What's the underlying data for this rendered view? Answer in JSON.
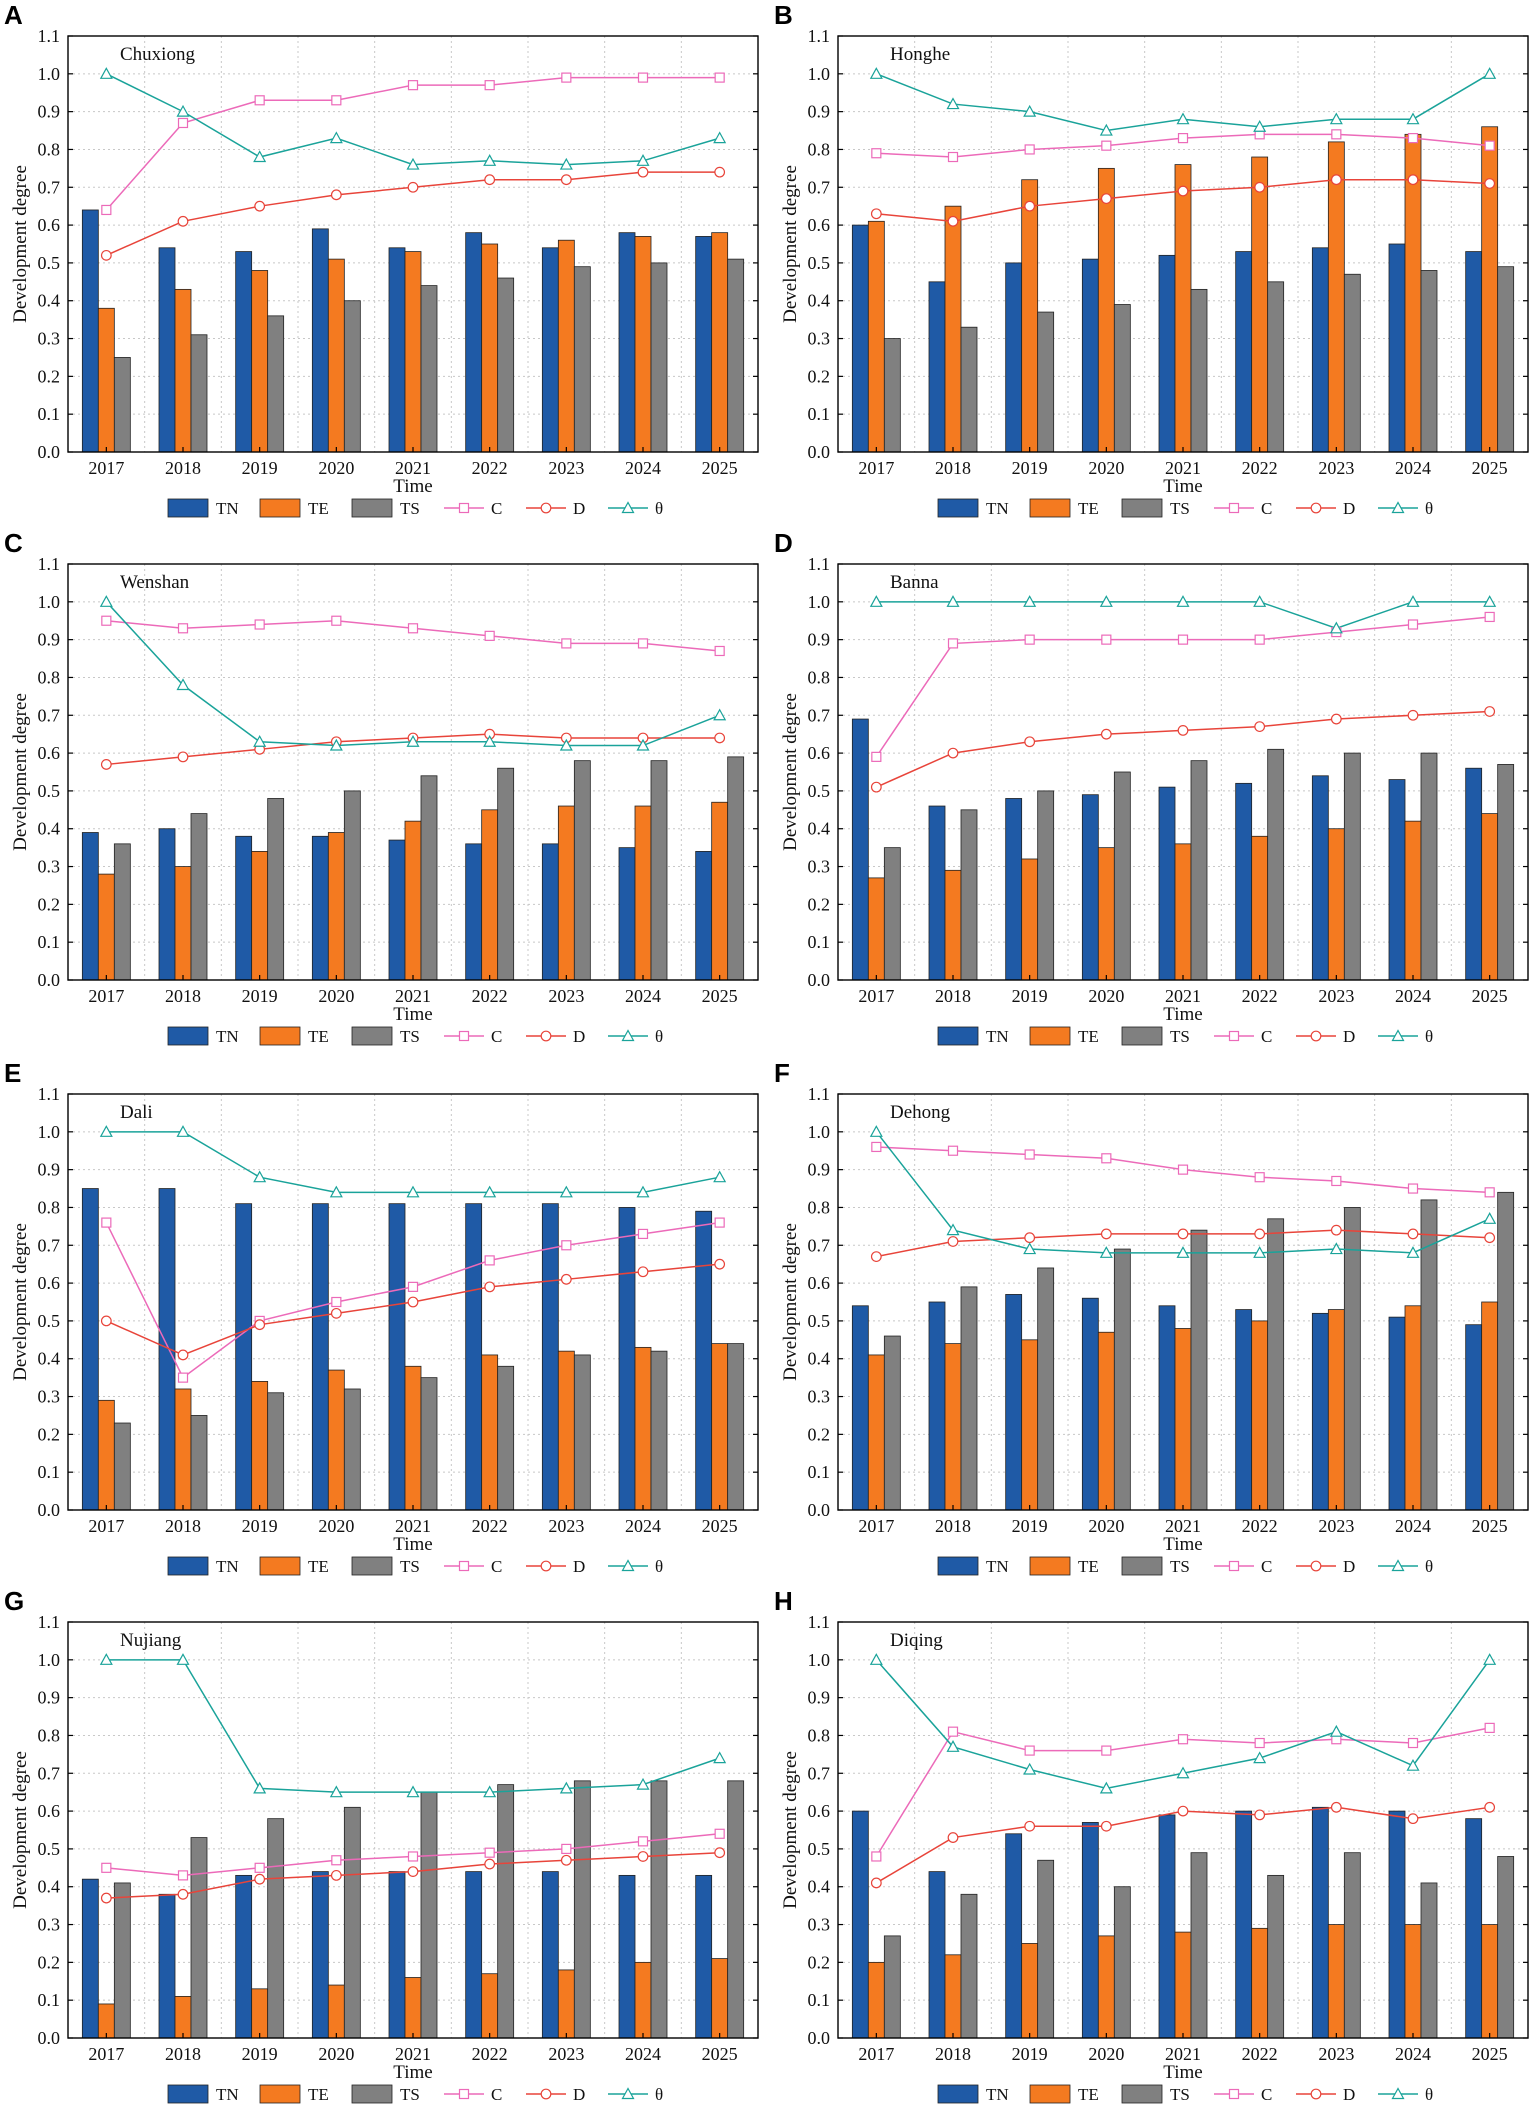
{
  "colors": {
    "TN": "#1f5aa6",
    "TE": "#f47a20",
    "TS": "#808080",
    "C": "#ec6ab9",
    "D": "#e8443a",
    "theta": "#1aa39a",
    "grid": "#c8c8c8",
    "axis": "#000000"
  },
  "chart_data": [
    {
      "panel": "A",
      "type": "bar+line",
      "title": "Chuxiong",
      "categories": [
        "2017",
        "2018",
        "2019",
        "2020",
        "2021",
        "2022",
        "2023",
        "2024",
        "2025"
      ],
      "xlabel": "Time",
      "ylabel": "Development degree",
      "ylim": [
        0,
        1.1
      ],
      "yticks": [
        "0.0",
        "0.1",
        "0.2",
        "0.3",
        "0.4",
        "0.5",
        "0.6",
        "0.7",
        "0.8",
        "0.9",
        "1.0",
        "1.1"
      ],
      "grid": true,
      "legend": "bottom",
      "legend_labels": {
        "TN": "TN",
        "TE": "TE",
        "TS": "TS",
        "C": "C",
        "D": "D",
        "theta": "θ"
      },
      "bars": {
        "TN": [
          0.64,
          0.54,
          0.53,
          0.59,
          0.54,
          0.58,
          0.54,
          0.58,
          0.57
        ],
        "TE": [
          0.38,
          0.43,
          0.48,
          0.51,
          0.53,
          0.55,
          0.56,
          0.57,
          0.58
        ],
        "TS": [
          0.25,
          0.31,
          0.36,
          0.4,
          0.44,
          0.46,
          0.49,
          0.5,
          0.51
        ]
      },
      "lines": {
        "C": [
          0.64,
          0.87,
          0.93,
          0.93,
          0.97,
          0.97,
          0.99,
          0.99,
          0.99
        ],
        "D": [
          0.52,
          0.61,
          0.65,
          0.68,
          0.7,
          0.72,
          0.72,
          0.74,
          0.74
        ],
        "theta": [
          1.0,
          0.9,
          0.78,
          0.83,
          0.76,
          0.77,
          0.76,
          0.77,
          0.83
        ]
      }
    },
    {
      "panel": "B",
      "type": "bar+line",
      "title": "Honghe",
      "categories": [
        "2017",
        "2018",
        "2019",
        "2020",
        "2021",
        "2022",
        "2023",
        "2024",
        "2025"
      ],
      "xlabel": "Time",
      "ylabel": "Development degree",
      "ylim": [
        0,
        1.1
      ],
      "yticks": [
        "0.0",
        "0.1",
        "0.2",
        "0.3",
        "0.4",
        "0.5",
        "0.6",
        "0.7",
        "0.8",
        "0.9",
        "1.0",
        "1.1"
      ],
      "grid": true,
      "legend": "bottom",
      "legend_labels": {
        "TN": "TN",
        "TE": "TE",
        "TS": "TS",
        "C": "C",
        "D": "D",
        "theta": "θ"
      },
      "bars": {
        "TN": [
          0.6,
          0.45,
          0.5,
          0.51,
          0.52,
          0.53,
          0.54,
          0.55,
          0.53
        ],
        "TE": [
          0.61,
          0.65,
          0.72,
          0.75,
          0.76,
          0.78,
          0.82,
          0.84,
          0.86
        ],
        "TS": [
          0.3,
          0.33,
          0.37,
          0.39,
          0.43,
          0.45,
          0.47,
          0.48,
          0.49
        ]
      },
      "lines": {
        "C": [
          0.79,
          0.78,
          0.8,
          0.81,
          0.83,
          0.84,
          0.84,
          0.83,
          0.81
        ],
        "D": [
          0.63,
          0.61,
          0.65,
          0.67,
          0.69,
          0.7,
          0.72,
          0.72,
          0.71
        ],
        "theta": [
          1.0,
          0.92,
          0.9,
          0.85,
          0.88,
          0.86,
          0.88,
          0.88,
          1.0
        ]
      }
    },
    {
      "panel": "C",
      "type": "bar+line",
      "title": "Wenshan",
      "categories": [
        "2017",
        "2018",
        "2019",
        "2020",
        "2021",
        "2022",
        "2023",
        "2024",
        "2025"
      ],
      "xlabel": "Time",
      "ylabel": "Development degree",
      "ylim": [
        0,
        1.1
      ],
      "yticks": [
        "0.0",
        "0.1",
        "0.2",
        "0.3",
        "0.4",
        "0.5",
        "0.6",
        "0.7",
        "0.8",
        "0.9",
        "1.0",
        "1.1"
      ],
      "grid": true,
      "legend": "bottom",
      "legend_labels": {
        "TN": "TN",
        "TE": "TE",
        "TS": "TS",
        "C": "C",
        "D": "D",
        "theta": "θ"
      },
      "bars": {
        "TN": [
          0.39,
          0.4,
          0.38,
          0.38,
          0.37,
          0.36,
          0.36,
          0.35,
          0.34
        ],
        "TE": [
          0.28,
          0.3,
          0.34,
          0.39,
          0.42,
          0.45,
          0.46,
          0.46,
          0.47
        ],
        "TS": [
          0.36,
          0.44,
          0.48,
          0.5,
          0.54,
          0.56,
          0.58,
          0.58,
          0.59
        ]
      },
      "lines": {
        "C": [
          0.95,
          0.93,
          0.94,
          0.95,
          0.93,
          0.91,
          0.89,
          0.89,
          0.87
        ],
        "D": [
          0.57,
          0.59,
          0.61,
          0.63,
          0.64,
          0.65,
          0.64,
          0.64,
          0.64
        ],
        "theta": [
          1.0,
          0.78,
          0.63,
          0.62,
          0.63,
          0.63,
          0.62,
          0.62,
          0.7
        ]
      }
    },
    {
      "panel": "D",
      "type": "bar+line",
      "title": "Banna",
      "categories": [
        "2017",
        "2018",
        "2019",
        "2020",
        "2021",
        "2022",
        "2023",
        "2024",
        "2025"
      ],
      "xlabel": "Time",
      "ylabel": "Development degree",
      "ylim": [
        0,
        1.1
      ],
      "yticks": [
        "0.0",
        "0.1",
        "0.2",
        "0.3",
        "0.4",
        "0.5",
        "0.6",
        "0.7",
        "0.8",
        "0.9",
        "1.0",
        "1.1"
      ],
      "grid": true,
      "legend": "bottom",
      "legend_labels": {
        "TN": "TN",
        "TE": "TE",
        "TS": "TS",
        "C": "C",
        "D": "D",
        "theta": "θ"
      },
      "bars": {
        "TN": [
          0.69,
          0.46,
          0.48,
          0.49,
          0.51,
          0.52,
          0.54,
          0.53,
          0.56
        ],
        "TE": [
          0.27,
          0.29,
          0.32,
          0.35,
          0.36,
          0.38,
          0.4,
          0.42,
          0.44
        ],
        "TS": [
          0.35,
          0.45,
          0.5,
          0.55,
          0.58,
          0.61,
          0.6,
          0.6,
          0.57
        ]
      },
      "lines": {
        "C": [
          0.59,
          0.89,
          0.9,
          0.9,
          0.9,
          0.9,
          0.92,
          0.94,
          0.96
        ],
        "D": [
          0.51,
          0.6,
          0.63,
          0.65,
          0.66,
          0.67,
          0.69,
          0.7,
          0.71
        ],
        "theta": [
          1.0,
          1.0,
          1.0,
          1.0,
          1.0,
          1.0,
          0.93,
          1.0,
          1.0
        ]
      }
    },
    {
      "panel": "E",
      "type": "bar+line",
      "title": "Dali",
      "categories": [
        "2017",
        "2018",
        "2019",
        "2020",
        "2021",
        "2022",
        "2023",
        "2024",
        "2025"
      ],
      "xlabel": "Time",
      "ylabel": "Development degree",
      "ylim": [
        0,
        1.1
      ],
      "yticks": [
        "0.0",
        "0.1",
        "0.2",
        "0.3",
        "0.4",
        "0.5",
        "0.6",
        "0.7",
        "0.8",
        "0.9",
        "1.0",
        "1.1"
      ],
      "grid": true,
      "legend": "bottom",
      "legend_labels": {
        "TN": "TN",
        "TE": "TE",
        "TS": "TS",
        "C": "C",
        "D": "D",
        "theta": "θ"
      },
      "bars": {
        "TN": [
          0.85,
          0.85,
          0.81,
          0.81,
          0.81,
          0.81,
          0.81,
          0.8,
          0.79
        ],
        "TE": [
          0.29,
          0.32,
          0.34,
          0.37,
          0.38,
          0.41,
          0.42,
          0.43,
          0.44
        ],
        "TS": [
          0.23,
          0.25,
          0.31,
          0.32,
          0.35,
          0.38,
          0.41,
          0.42,
          0.44
        ]
      },
      "lines": {
        "C": [
          0.76,
          0.35,
          0.5,
          0.55,
          0.59,
          0.66,
          0.7,
          0.73,
          0.76
        ],
        "D": [
          0.5,
          0.41,
          0.49,
          0.52,
          0.55,
          0.59,
          0.61,
          0.63,
          0.65
        ],
        "theta": [
          1.0,
          1.0,
          0.88,
          0.84,
          0.84,
          0.84,
          0.84,
          0.84,
          0.88
        ]
      }
    },
    {
      "panel": "F",
      "type": "bar+line",
      "title": "Dehong",
      "categories": [
        "2017",
        "2018",
        "2019",
        "2020",
        "2021",
        "2022",
        "2023",
        "2024",
        "2025"
      ],
      "xlabel": "Time",
      "ylabel": "Development degree",
      "ylim": [
        0,
        1.1
      ],
      "yticks": [
        "0.0",
        "0.1",
        "0.2",
        "0.3",
        "0.4",
        "0.5",
        "0.6",
        "0.7",
        "0.8",
        "0.9",
        "1.0",
        "1.1"
      ],
      "grid": true,
      "legend": "bottom",
      "legend_labels": {
        "TN": "TN",
        "TE": "TE",
        "TS": "TS",
        "C": "C",
        "D": "D",
        "theta": "θ"
      },
      "bars": {
        "TN": [
          0.54,
          0.55,
          0.57,
          0.56,
          0.54,
          0.53,
          0.52,
          0.51,
          0.49
        ],
        "TE": [
          0.41,
          0.44,
          0.45,
          0.47,
          0.48,
          0.5,
          0.53,
          0.54,
          0.55
        ],
        "TS": [
          0.46,
          0.59,
          0.64,
          0.69,
          0.74,
          0.77,
          0.8,
          0.82,
          0.84
        ]
      },
      "lines": {
        "C": [
          0.96,
          0.95,
          0.94,
          0.93,
          0.9,
          0.88,
          0.87,
          0.85,
          0.84
        ],
        "D": [
          0.67,
          0.71,
          0.72,
          0.73,
          0.73,
          0.73,
          0.74,
          0.73,
          0.72
        ],
        "theta": [
          1.0,
          0.74,
          0.69,
          0.68,
          0.68,
          0.68,
          0.69,
          0.68,
          0.77
        ]
      }
    },
    {
      "panel": "G",
      "type": "bar+line",
      "title": "Nujiang",
      "categories": [
        "2017",
        "2018",
        "2019",
        "2020",
        "2021",
        "2022",
        "2023",
        "2024",
        "2025"
      ],
      "xlabel": "Time",
      "ylabel": "Development degree",
      "ylim": [
        0,
        1.1
      ],
      "yticks": [
        "0.0",
        "0.1",
        "0.2",
        "0.3",
        "0.4",
        "0.5",
        "0.6",
        "0.7",
        "0.8",
        "0.9",
        "1.0",
        "1.1"
      ],
      "grid": true,
      "legend": "bottom",
      "legend_labels": {
        "TN": "TN",
        "TE": "TE",
        "TS": "TS",
        "C": "C",
        "D": "D",
        "theta": "θ"
      },
      "bars": {
        "TN": [
          0.42,
          0.38,
          0.43,
          0.44,
          0.44,
          0.44,
          0.44,
          0.43,
          0.43
        ],
        "TE": [
          0.09,
          0.11,
          0.13,
          0.14,
          0.16,
          0.17,
          0.18,
          0.2,
          0.21
        ],
        "TS": [
          0.41,
          0.53,
          0.58,
          0.61,
          0.65,
          0.67,
          0.68,
          0.68,
          0.68
        ]
      },
      "lines": {
        "C": [
          0.45,
          0.43,
          0.45,
          0.47,
          0.48,
          0.49,
          0.5,
          0.52,
          0.54
        ],
        "D": [
          0.37,
          0.38,
          0.42,
          0.43,
          0.44,
          0.46,
          0.47,
          0.48,
          0.49
        ],
        "theta": [
          1.0,
          1.0,
          0.66,
          0.65,
          0.65,
          0.65,
          0.66,
          0.67,
          0.74
        ]
      }
    },
    {
      "panel": "H",
      "type": "bar+line",
      "title": "Diqing",
      "categories": [
        "2017",
        "2018",
        "2019",
        "2020",
        "2021",
        "2022",
        "2023",
        "2024",
        "2025"
      ],
      "xlabel": "Time",
      "ylabel": "Development degree",
      "ylim": [
        0,
        1.1
      ],
      "yticks": [
        "0.0",
        "0.1",
        "0.2",
        "0.3",
        "0.4",
        "0.5",
        "0.6",
        "0.7",
        "0.8",
        "0.9",
        "1.0",
        "1.1"
      ],
      "grid": true,
      "legend": "bottom",
      "legend_labels": {
        "TN": "TN",
        "TE": "TE",
        "TS": "TS",
        "C": "C",
        "D": "D",
        "theta": "θ"
      },
      "bars": {
        "TN": [
          0.6,
          0.44,
          0.54,
          0.57,
          0.59,
          0.6,
          0.61,
          0.6,
          0.58
        ],
        "TE": [
          0.2,
          0.22,
          0.25,
          0.27,
          0.28,
          0.29,
          0.3,
          0.3,
          0.3
        ],
        "TS": [
          0.27,
          0.38,
          0.47,
          0.4,
          0.49,
          0.43,
          0.49,
          0.41,
          0.48
        ]
      },
      "lines": {
        "C": [
          0.48,
          0.81,
          0.76,
          0.76,
          0.79,
          0.78,
          0.79,
          0.78,
          0.82
        ],
        "D": [
          0.41,
          0.53,
          0.56,
          0.56,
          0.6,
          0.59,
          0.61,
          0.58,
          0.61
        ],
        "theta": [
          1.0,
          0.77,
          0.71,
          0.66,
          0.7,
          0.74,
          0.81,
          0.72,
          1.0
        ]
      }
    }
  ]
}
